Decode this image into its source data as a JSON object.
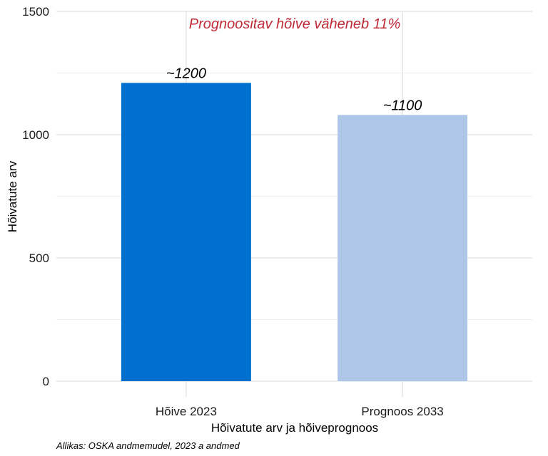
{
  "chart_data": {
    "type": "bar",
    "categories": [
      "Hõive 2023",
      "Prognoos 2033"
    ],
    "values": [
      1210,
      1080
    ],
    "data_labels": [
      "~1200",
      "~1100"
    ],
    "colors": [
      "#0070CE",
      "#AEC7E8"
    ],
    "annotation": "Prognoositav hõive väheneb 11%",
    "annotation_color": "#BF2A37",
    "xlabel": "Hõivatute arv ja hõiveprognoos",
    "ylabel": "Hõivatute arv",
    "ylim": [
      0,
      1500
    ],
    "yticks": [
      0,
      500,
      1000,
      1500
    ],
    "yticks_minor": [
      250,
      750,
      1250
    ],
    "grid": true,
    "legend": "none",
    "caption": "Allikas: OSKA andmemudel, 2023 a andmed"
  }
}
